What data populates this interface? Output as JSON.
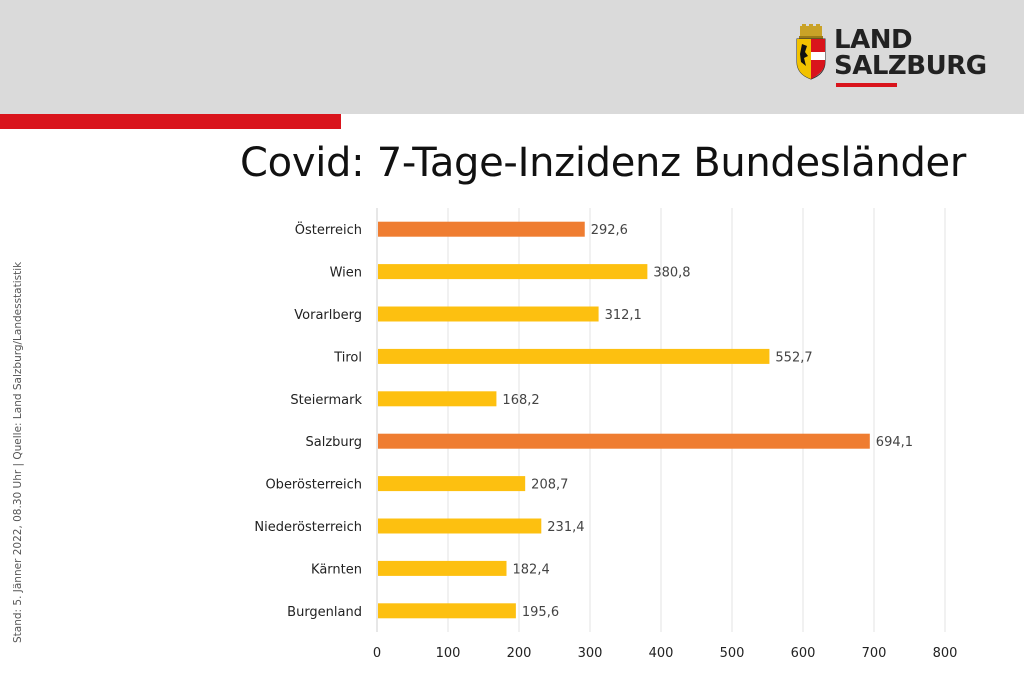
{
  "logo": {
    "line1": "LAND",
    "line2": "SALZBURG"
  },
  "colors": {
    "accent_red": "#d9141c",
    "bar_default": "#fdc010",
    "bar_highlight": "#ef7d31",
    "header_bg": "#dadada"
  },
  "side_note": "Stand: 5. Jänner  2022, 08.30 Uhr  |  Quelle: Land Salzburg/Landesstatistik",
  "chart_data": {
    "type": "bar",
    "orientation": "horizontal",
    "title": "Covid: 7-Tage-Inzidenz Bundesländer",
    "categories": [
      "Österreich",
      "Wien",
      "Vorarlberg",
      "Tirol",
      "Steiermark",
      "Salzburg",
      "Oberösterreich",
      "Niederösterreich",
      "Kärnten",
      "Burgenland"
    ],
    "values": [
      292.6,
      380.8,
      312.1,
      552.7,
      168.2,
      694.1,
      208.7,
      231.4,
      182.4,
      195.6
    ],
    "value_labels": [
      "292,6",
      "380,8",
      "312,1",
      "552,7",
      "168,2",
      "694,1",
      "208,7",
      "231,4",
      "182,4",
      "195,6"
    ],
    "highlighted": [
      "Österreich",
      "Salzburg"
    ],
    "xlim": [
      0,
      800
    ],
    "x_ticks": [
      0,
      100,
      200,
      300,
      400,
      500,
      600,
      700,
      800
    ],
    "grid": true
  }
}
